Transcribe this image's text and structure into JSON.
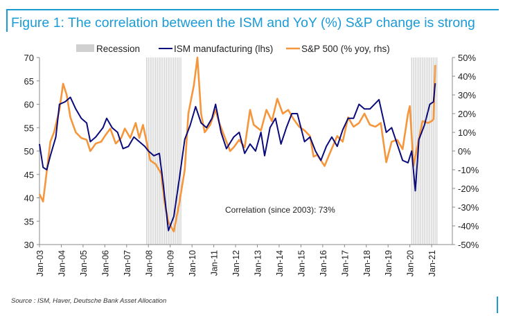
{
  "title": "Figure 1: The correlation between the ISM and YoY (%) S&P change is strong",
  "source": "Source : ISM, Haver, Deutsche Bank Asset Allocation",
  "chart_data": {
    "type": "line",
    "title": "Figure 1: The correlation between the ISM and YoY (%) S&P change is strong",
    "annotation": "Correlation (since 2003): 73%",
    "legend": {
      "placement": "top",
      "entries": [
        "Recession",
        "ISM manufacturing (lhs)",
        "S&P 500 (% yoy, rhs)"
      ]
    },
    "colors": {
      "ism": "#0a0a7a",
      "sp500": "#f5963c",
      "recession": "#d0d0d0",
      "accent": "#1a9bd7"
    },
    "grid": false,
    "x_ticks": [
      "Jan-03",
      "Jan-04",
      "Jan-05",
      "Jan-06",
      "Jan-07",
      "Jan-08",
      "Jan-09",
      "Jan-10",
      "Jan-11",
      "Jan-12",
      "Jan-13",
      "Jan-14",
      "Jan-15",
      "Jan-16",
      "Jan-17",
      "Jan-18",
      "Jan-19",
      "Jan-20",
      "Jan-21"
    ],
    "y_left": {
      "range": [
        30,
        70
      ],
      "ticks": [
        "30",
        "35",
        "40",
        "45",
        "50",
        "55",
        "60",
        "65",
        "70"
      ]
    },
    "y_right": {
      "range": [
        -50,
        50
      ],
      "ticks": [
        "-50%",
        "-40%",
        "-30%",
        "-20%",
        "-10%",
        "0%",
        "10%",
        "20%",
        "30%",
        "40%",
        "50%"
      ]
    },
    "recessions": [
      [
        "2007-12",
        "2009-06"
      ],
      [
        "2020-02",
        "2021-03"
      ]
    ],
    "series": [
      {
        "name": "ISM manufacturing (lhs)",
        "axis": "left",
        "points": [
          [
            "2003-01",
            51.5
          ],
          [
            "2003-03",
            46.5
          ],
          [
            "2003-05",
            46
          ],
          [
            "2003-07",
            49
          ],
          [
            "2003-10",
            53
          ],
          [
            "2003-12",
            60
          ],
          [
            "2004-03",
            60.5
          ],
          [
            "2004-06",
            61.5
          ],
          [
            "2004-09",
            59
          ],
          [
            "2004-12",
            57
          ],
          [
            "2005-03",
            56
          ],
          [
            "2005-05",
            52
          ],
          [
            "2005-08",
            53
          ],
          [
            "2005-12",
            55
          ],
          [
            "2006-02",
            57
          ],
          [
            "2006-05",
            55
          ],
          [
            "2006-08",
            54
          ],
          [
            "2006-11",
            50.5
          ],
          [
            "2007-02",
            51
          ],
          [
            "2007-05",
            53
          ],
          [
            "2007-08",
            52
          ],
          [
            "2007-11",
            51
          ],
          [
            "2008-01",
            50
          ],
          [
            "2008-04",
            49
          ],
          [
            "2008-07",
            49.5
          ],
          [
            "2008-09",
            43.5
          ],
          [
            "2008-12",
            33
          ],
          [
            "2009-03",
            36
          ],
          [
            "2009-06",
            44
          ],
          [
            "2009-09",
            52.5
          ],
          [
            "2009-12",
            55.5
          ],
          [
            "2010-03",
            59.5
          ],
          [
            "2010-06",
            56
          ],
          [
            "2010-09",
            55
          ],
          [
            "2010-12",
            57
          ],
          [
            "2011-02",
            60
          ],
          [
            "2011-05",
            54
          ],
          [
            "2011-08",
            50.5
          ],
          [
            "2011-12",
            53
          ],
          [
            "2012-03",
            54
          ],
          [
            "2012-06",
            49.5
          ],
          [
            "2012-09",
            51.5
          ],
          [
            "2012-12",
            50
          ],
          [
            "2013-03",
            54
          ],
          [
            "2013-05",
            49
          ],
          [
            "2013-08",
            55
          ],
          [
            "2013-11",
            57
          ],
          [
            "2014-02",
            51.5
          ],
          [
            "2014-05",
            55
          ],
          [
            "2014-08",
            58
          ],
          [
            "2014-11",
            58
          ],
          [
            "2015-03",
            52
          ],
          [
            "2015-06",
            53
          ],
          [
            "2015-09",
            50
          ],
          [
            "2015-12",
            48
          ],
          [
            "2016-03",
            51
          ],
          [
            "2016-06",
            53
          ],
          [
            "2016-09",
            51
          ],
          [
            "2016-12",
            54.5
          ],
          [
            "2017-03",
            57
          ],
          [
            "2017-06",
            57
          ],
          [
            "2017-09",
            60
          ],
          [
            "2017-12",
            59
          ],
          [
            "2018-03",
            59
          ],
          [
            "2018-08",
            61
          ],
          [
            "2018-12",
            54
          ],
          [
            "2019-03",
            55
          ],
          [
            "2019-06",
            51.5
          ],
          [
            "2019-09",
            48
          ],
          [
            "2019-12",
            47.5
          ],
          [
            "2020-02",
            50
          ],
          [
            "2020-04",
            41.5
          ],
          [
            "2020-06",
            52.5
          ],
          [
            "2020-09",
            55.5
          ],
          [
            "2020-12",
            60
          ],
          [
            "2021-02",
            60.5
          ],
          [
            "2021-03",
            64.5
          ]
        ]
      },
      {
        "name": "S&P 500 (% yoy, rhs)",
        "axis": "right",
        "points": [
          [
            "2003-01",
            -23
          ],
          [
            "2003-03",
            -27
          ],
          [
            "2003-07",
            5
          ],
          [
            "2003-09",
            10
          ],
          [
            "2003-12",
            22
          ],
          [
            "2004-02",
            36
          ],
          [
            "2004-04",
            30
          ],
          [
            "2004-06",
            18
          ],
          [
            "2004-09",
            10
          ],
          [
            "2004-12",
            7
          ],
          [
            "2005-03",
            6
          ],
          [
            "2005-05",
            0
          ],
          [
            "2005-08",
            4
          ],
          [
            "2005-11",
            5
          ],
          [
            "2006-01",
            8
          ],
          [
            "2006-04",
            12
          ],
          [
            "2006-07",
            4
          ],
          [
            "2006-10",
            7
          ],
          [
            "2006-12",
            12
          ],
          [
            "2007-03",
            7
          ],
          [
            "2007-06",
            15
          ],
          [
            "2007-08",
            7
          ],
          [
            "2007-10",
            14
          ],
          [
            "2007-12",
            5
          ],
          [
            "2008-02",
            -5
          ],
          [
            "2008-05",
            -7
          ],
          [
            "2008-08",
            -12
          ],
          [
            "2008-10",
            -28
          ],
          [
            "2008-12",
            -38
          ],
          [
            "2009-03",
            -43
          ],
          [
            "2009-06",
            -28
          ],
          [
            "2009-09",
            -10
          ],
          [
            "2009-11",
            20
          ],
          [
            "2010-02",
            35
          ],
          [
            "2010-04",
            50
          ],
          [
            "2010-06",
            20
          ],
          [
            "2010-08",
            10
          ],
          [
            "2010-11",
            14
          ],
          [
            "2011-02",
            22
          ],
          [
            "2011-04",
            15
          ],
          [
            "2011-08",
            5
          ],
          [
            "2011-10",
            0
          ],
          [
            "2011-12",
            2
          ],
          [
            "2012-03",
            6
          ],
          [
            "2012-06",
            2
          ],
          [
            "2012-09",
            22
          ],
          [
            "2012-11",
            14
          ],
          [
            "2013-03",
            11
          ],
          [
            "2013-06",
            22
          ],
          [
            "2013-09",
            16
          ],
          [
            "2013-12",
            28
          ],
          [
            "2014-03",
            20
          ],
          [
            "2014-06",
            22
          ],
          [
            "2014-09",
            17
          ],
          [
            "2014-12",
            13
          ],
          [
            "2015-03",
            11
          ],
          [
            "2015-06",
            8
          ],
          [
            "2015-08",
            -3
          ],
          [
            "2015-10",
            -2
          ],
          [
            "2016-02",
            -8
          ],
          [
            "2016-05",
            -1
          ],
          [
            "2016-09",
            8
          ],
          [
            "2016-12",
            5
          ],
          [
            "2017-03",
            18
          ],
          [
            "2017-06",
            13
          ],
          [
            "2017-09",
            15
          ],
          [
            "2017-12",
            20
          ],
          [
            "2018-03",
            14
          ],
          [
            "2018-06",
            13
          ],
          [
            "2018-09",
            15
          ],
          [
            "2018-12",
            -6
          ],
          [
            "2019-03",
            5
          ],
          [
            "2019-06",
            6
          ],
          [
            "2019-09",
            1
          ],
          [
            "2019-12",
            20
          ],
          [
            "2020-01",
            24
          ],
          [
            "2020-03",
            -8
          ],
          [
            "2020-05",
            2
          ],
          [
            "2020-08",
            16
          ],
          [
            "2020-11",
            15
          ],
          [
            "2021-01",
            16
          ],
          [
            "2021-02",
            17
          ],
          [
            "2021-03",
            46
          ]
        ]
      }
    ]
  }
}
